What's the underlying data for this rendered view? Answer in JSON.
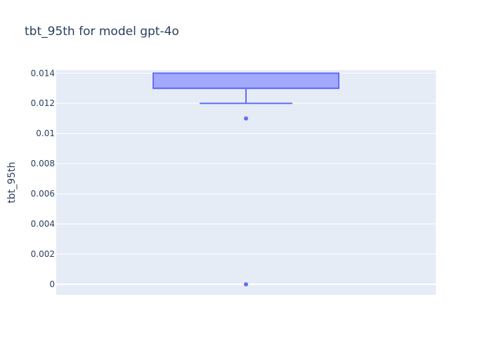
{
  "chart_data": {
    "type": "box",
    "title": "tbt_95th for model gpt-4o",
    "xlabel": "",
    "ylabel": "tbt_95th",
    "ylim": [
      -0.0007,
      0.0142
    ],
    "y_ticks": [
      0,
      0.002,
      0.004,
      0.006,
      0.008,
      0.01,
      0.012,
      0.014
    ],
    "y_tick_labels": [
      "0",
      "0.002",
      "0.004",
      "0.006",
      "0.008",
      "0.01",
      "0.012",
      "0.014"
    ],
    "grid": true,
    "legend": "none",
    "box": {
      "q1": 0.013,
      "median": 0.013,
      "q3": 0.014,
      "whisker_low": 0.012,
      "whisker_high": 0.014,
      "outliers": [
        0.011,
        0
      ]
    },
    "colors": {
      "plot_bg": "#e5ecf6",
      "grid": "#ffffff",
      "box_line": "#636efa",
      "box_fill": "#a3a9fc",
      "text": "#2a3f5f"
    }
  }
}
